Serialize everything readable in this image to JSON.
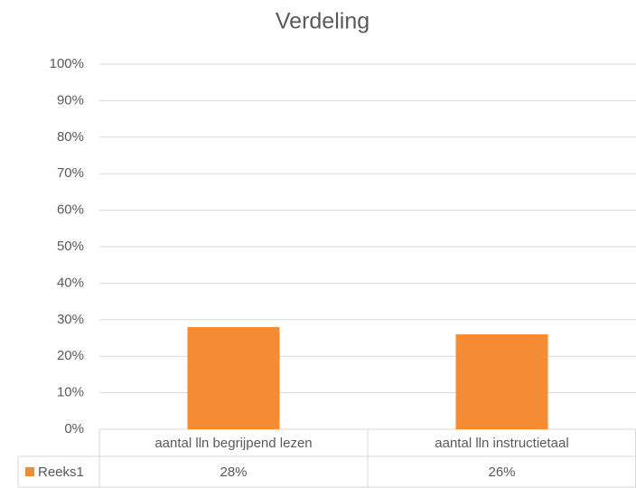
{
  "chart_data": {
    "type": "bar",
    "title": "Verdeling",
    "categories": [
      "aantal lln begrijpend lezen",
      "aantal lln instructietaal"
    ],
    "series": [
      {
        "name": "Reeks1",
        "color": "#f58b33",
        "values": [
          28,
          26
        ],
        "value_labels": [
          "28%",
          "26%"
        ]
      }
    ],
    "ylim": [
      0,
      100
    ],
    "yticks": [
      {
        "value": 0,
        "label": "0%"
      },
      {
        "value": 10,
        "label": "10%"
      },
      {
        "value": 20,
        "label": "20%"
      },
      {
        "value": 30,
        "label": "30%"
      },
      {
        "value": 40,
        "label": "40%"
      },
      {
        "value": 50,
        "label": "50%"
      },
      {
        "value": 60,
        "label": "60%"
      },
      {
        "value": 70,
        "label": "70%"
      },
      {
        "value": 80,
        "label": "80%"
      },
      {
        "value": 90,
        "label": "90%"
      },
      {
        "value": 100,
        "label": "100%"
      }
    ],
    "grid": true,
    "data_table": true
  }
}
